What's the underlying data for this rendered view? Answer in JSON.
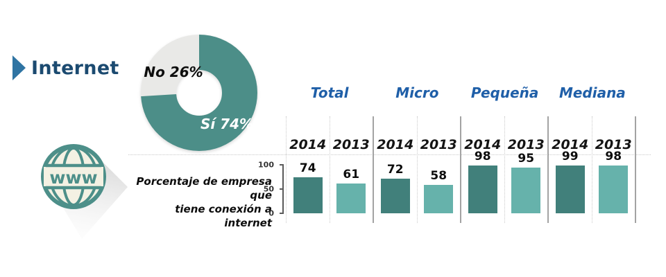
{
  "title": {
    "label": "Internet"
  },
  "globe_icon": {
    "text": "www"
  },
  "caption": "Porcentaje de empresa que\ntiene conexión a internet",
  "colors": {
    "bar_2014": "#41807B",
    "bar_2013": "#66B2AB",
    "donut_si": "#4C8E88",
    "donut_no": "#E9E9E7",
    "header_blue": "#1F5FA8",
    "title_navy": "#1B4A70",
    "arrow_blue": "#2F74A3",
    "globe_teal": "#4D8F89",
    "globe_cream": "#F4F1E3"
  },
  "chart_data": [
    {
      "type": "pie",
      "subtype": "donut",
      "slices": [
        {
          "label": "Sí",
          "pct": 74,
          "display": "Sí 74%",
          "color": "#4C8E88"
        },
        {
          "label": "No",
          "pct": 26,
          "display": "No 26%",
          "color": "#E9E9E7"
        }
      ],
      "start_angle": "top",
      "direction": "clockwise"
    },
    {
      "type": "bar",
      "title": "Porcentaje de empresa que tiene conexión a internet",
      "categories": [
        "Total",
        "Micro",
        "Pequeña",
        "Mediana"
      ],
      "series": [
        {
          "name": "2014",
          "color": "#41807B",
          "values": [
            74,
            72,
            98,
            99
          ]
        },
        {
          "name": "2013",
          "color": "#66B2AB",
          "values": [
            61,
            58,
            95,
            98
          ]
        }
      ],
      "yticks": [
        "100",
        "50",
        "0"
      ],
      "ylim": [
        0,
        100
      ],
      "legend": "none",
      "grid": "dotted-column-separators"
    }
  ]
}
